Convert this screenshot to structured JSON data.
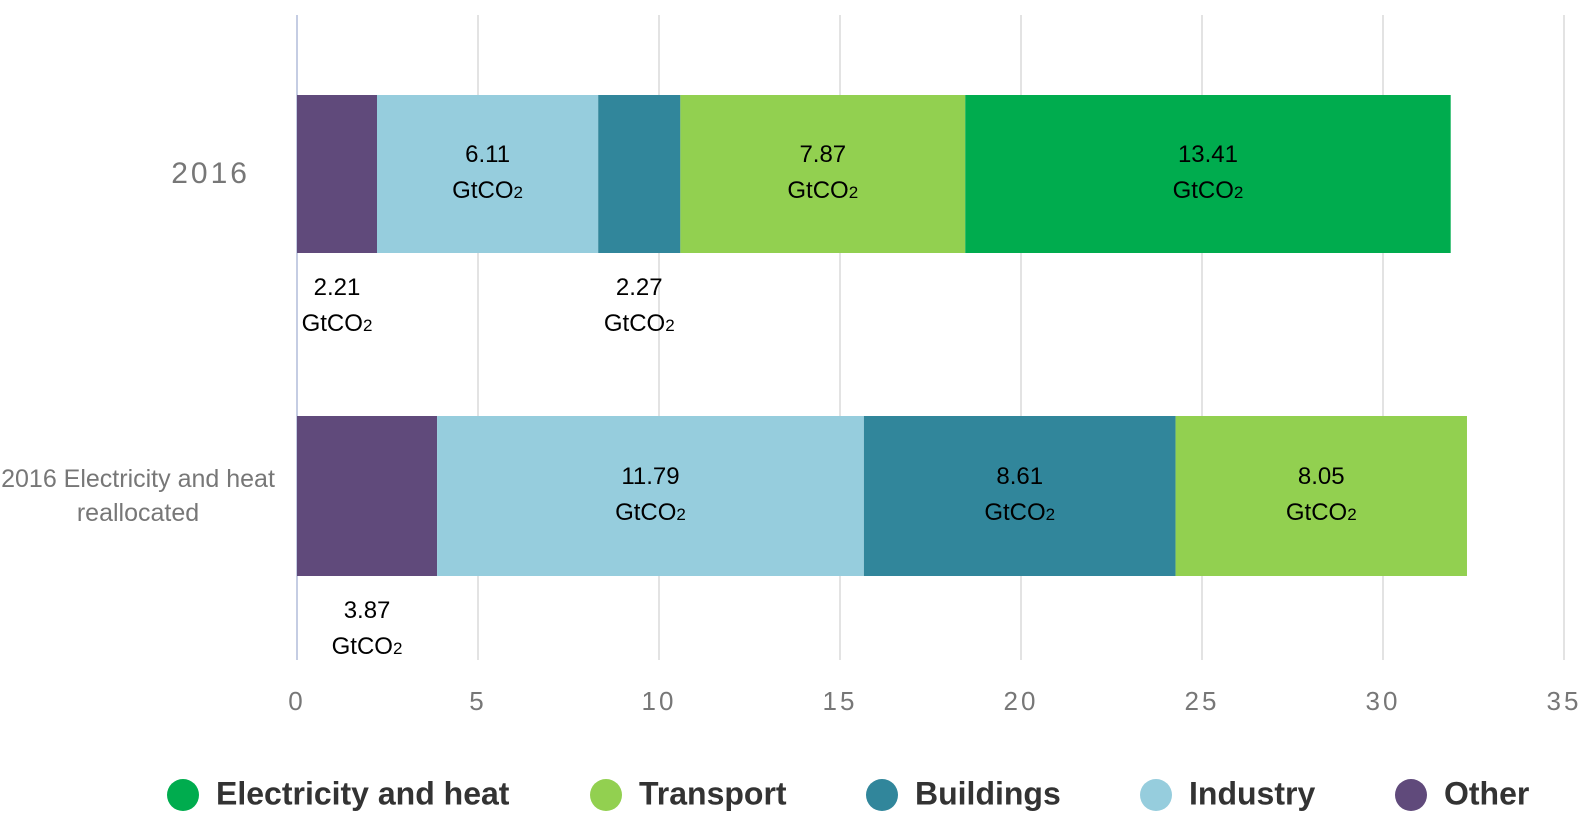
{
  "chart_data": {
    "type": "stacked-barh",
    "categories": [
      "2016",
      "2016 Electricity and heat reallocated"
    ],
    "series": [
      {
        "name": "Electricity and heat",
        "color": "#00ac4e",
        "values": [
          13.41,
          null
        ],
        "value_labels": [
          "13.41 GtCO2",
          null
        ]
      },
      {
        "name": "Transport",
        "color": "#92d050",
        "values": [
          7.87,
          8.05
        ],
        "value_labels": [
          "7.87 GtCO2",
          "8.05 GtCO2"
        ]
      },
      {
        "name": "Buildings",
        "color": "#31869b",
        "values": [
          2.27,
          8.61
        ],
        "value_labels": [
          "2.27 GtCO2",
          "8.61 GtCO2"
        ]
      },
      {
        "name": "Industry",
        "color": "#96cddd",
        "values": [
          6.11,
          11.79
        ],
        "value_labels": [
          "6.11 GtCO2",
          "11.79 GtCO2"
        ]
      },
      {
        "name": "Other",
        "color": "#604a7b",
        "values": [
          2.21,
          3.87
        ],
        "value_labels": [
          "2.21 GtCO2",
          "3.87 GtCO2"
        ]
      }
    ],
    "xlim": [
      0,
      35
    ],
    "xticks": [
      0,
      5,
      10,
      15,
      20,
      25,
      30,
      35
    ],
    "grid": true,
    "legend": "bottom"
  }
}
